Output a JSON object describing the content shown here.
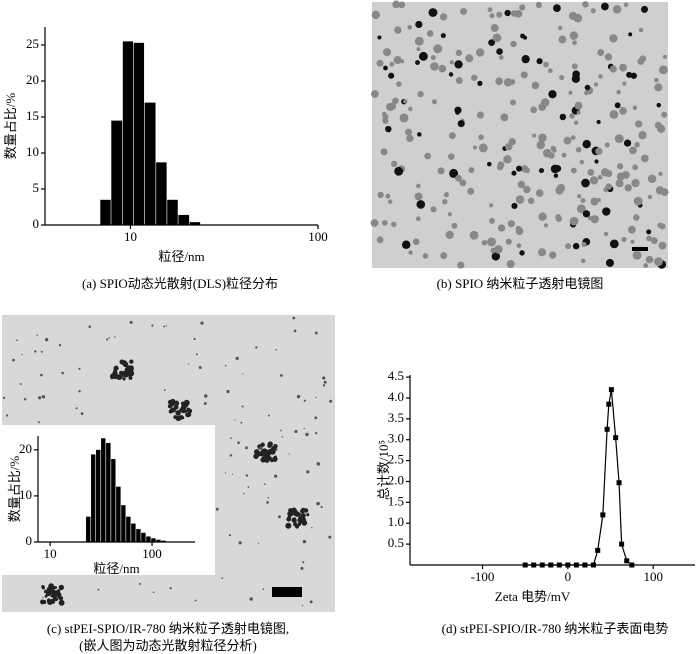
{
  "chart_data": [
    {
      "type": "histogram",
      "ylabel": "数量占比/%",
      "xlabel": "粒径/nm",
      "xscale": "log",
      "xlim": [
        3.5,
        100
      ],
      "xticks": [
        10,
        100
      ],
      "ylim": [
        0,
        27.5
      ],
      "yticks": [
        0,
        5,
        10,
        15,
        20,
        25
      ],
      "color": "#000000",
      "bins": [
        6.9,
        7.9,
        9.1,
        10.4,
        11.9,
        13.7,
        15.7,
        18.0,
        20.7,
        23.7
      ],
      "values": [
        3.5,
        14.5,
        25.5,
        25.3,
        17,
        8.7,
        3.5,
        1.4,
        0.4
      ],
      "caption": "(a) SPIO动态光散射(DLS)粒径分布"
    },
    {
      "type": "histogram",
      "ylabel": "数量占比/%",
      "xlabel": "粒径/nm",
      "xscale": "log",
      "xlim": [
        7.6,
        264
      ],
      "xticks": [
        10,
        100
      ],
      "ylim": [
        0,
        23
      ],
      "yticks": [
        0,
        10,
        20
      ],
      "color": "#000000",
      "bins": [
        22.5,
        25.2,
        28.2,
        31.6,
        35.4,
        39.7,
        44.4,
        49.8,
        55.7,
        62.4,
        69.9,
        78.3,
        87.7,
        98.2,
        110,
        123.2,
        138
      ],
      "values": [
        5.5,
        19,
        20,
        22.5,
        21.5,
        18,
        12,
        8,
        5.5,
        4,
        2.8,
        2,
        1.2,
        0.8,
        0.5,
        0.3
      ]
    },
    {
      "type": "line",
      "ylabel": "总计数/10⁵",
      "xlabel": "Zeta 电势/mV",
      "xlim": [
        -185,
        149
      ],
      "xticks": [
        -100,
        0,
        100
      ],
      "ylim": [
        0,
        4.55
      ],
      "yticks": [
        0.5,
        {
          "value": 1,
          "label": "1.0"
        },
        1.5,
        {
          "value": 2,
          "label": "2.0"
        },
        2.5,
        {
          "value": 3,
          "label": "3.0"
        },
        3.5,
        {
          "value": 4,
          "label": "4.0"
        },
        4.5
      ],
      "color": "#000000",
      "x": [
        -50,
        -40,
        -30,
        -20,
        -10,
        0,
        10,
        20,
        30,
        35,
        41,
        46,
        48,
        51,
        56,
        60,
        63,
        69,
        75
      ],
      "values": [
        0,
        0,
        0,
        0,
        0,
        0,
        0,
        0,
        0,
        0.35,
        1.2,
        3.25,
        3.85,
        4.2,
        3.05,
        1.97,
        0.5,
        0.1,
        0
      ],
      "caption": "(d) stPEI-SPIO/IR-780 纳米粒子表面电势"
    }
  ],
  "panels": {
    "b_caption": "(b) SPIO 纳米粒子透射电镜图",
    "c_caption": [
      "(c) stPEI-SPIO/IR-780 纳米粒子透射电镜图,",
      "(嵌人图为动态光散射粒径分析)"
    ]
  }
}
